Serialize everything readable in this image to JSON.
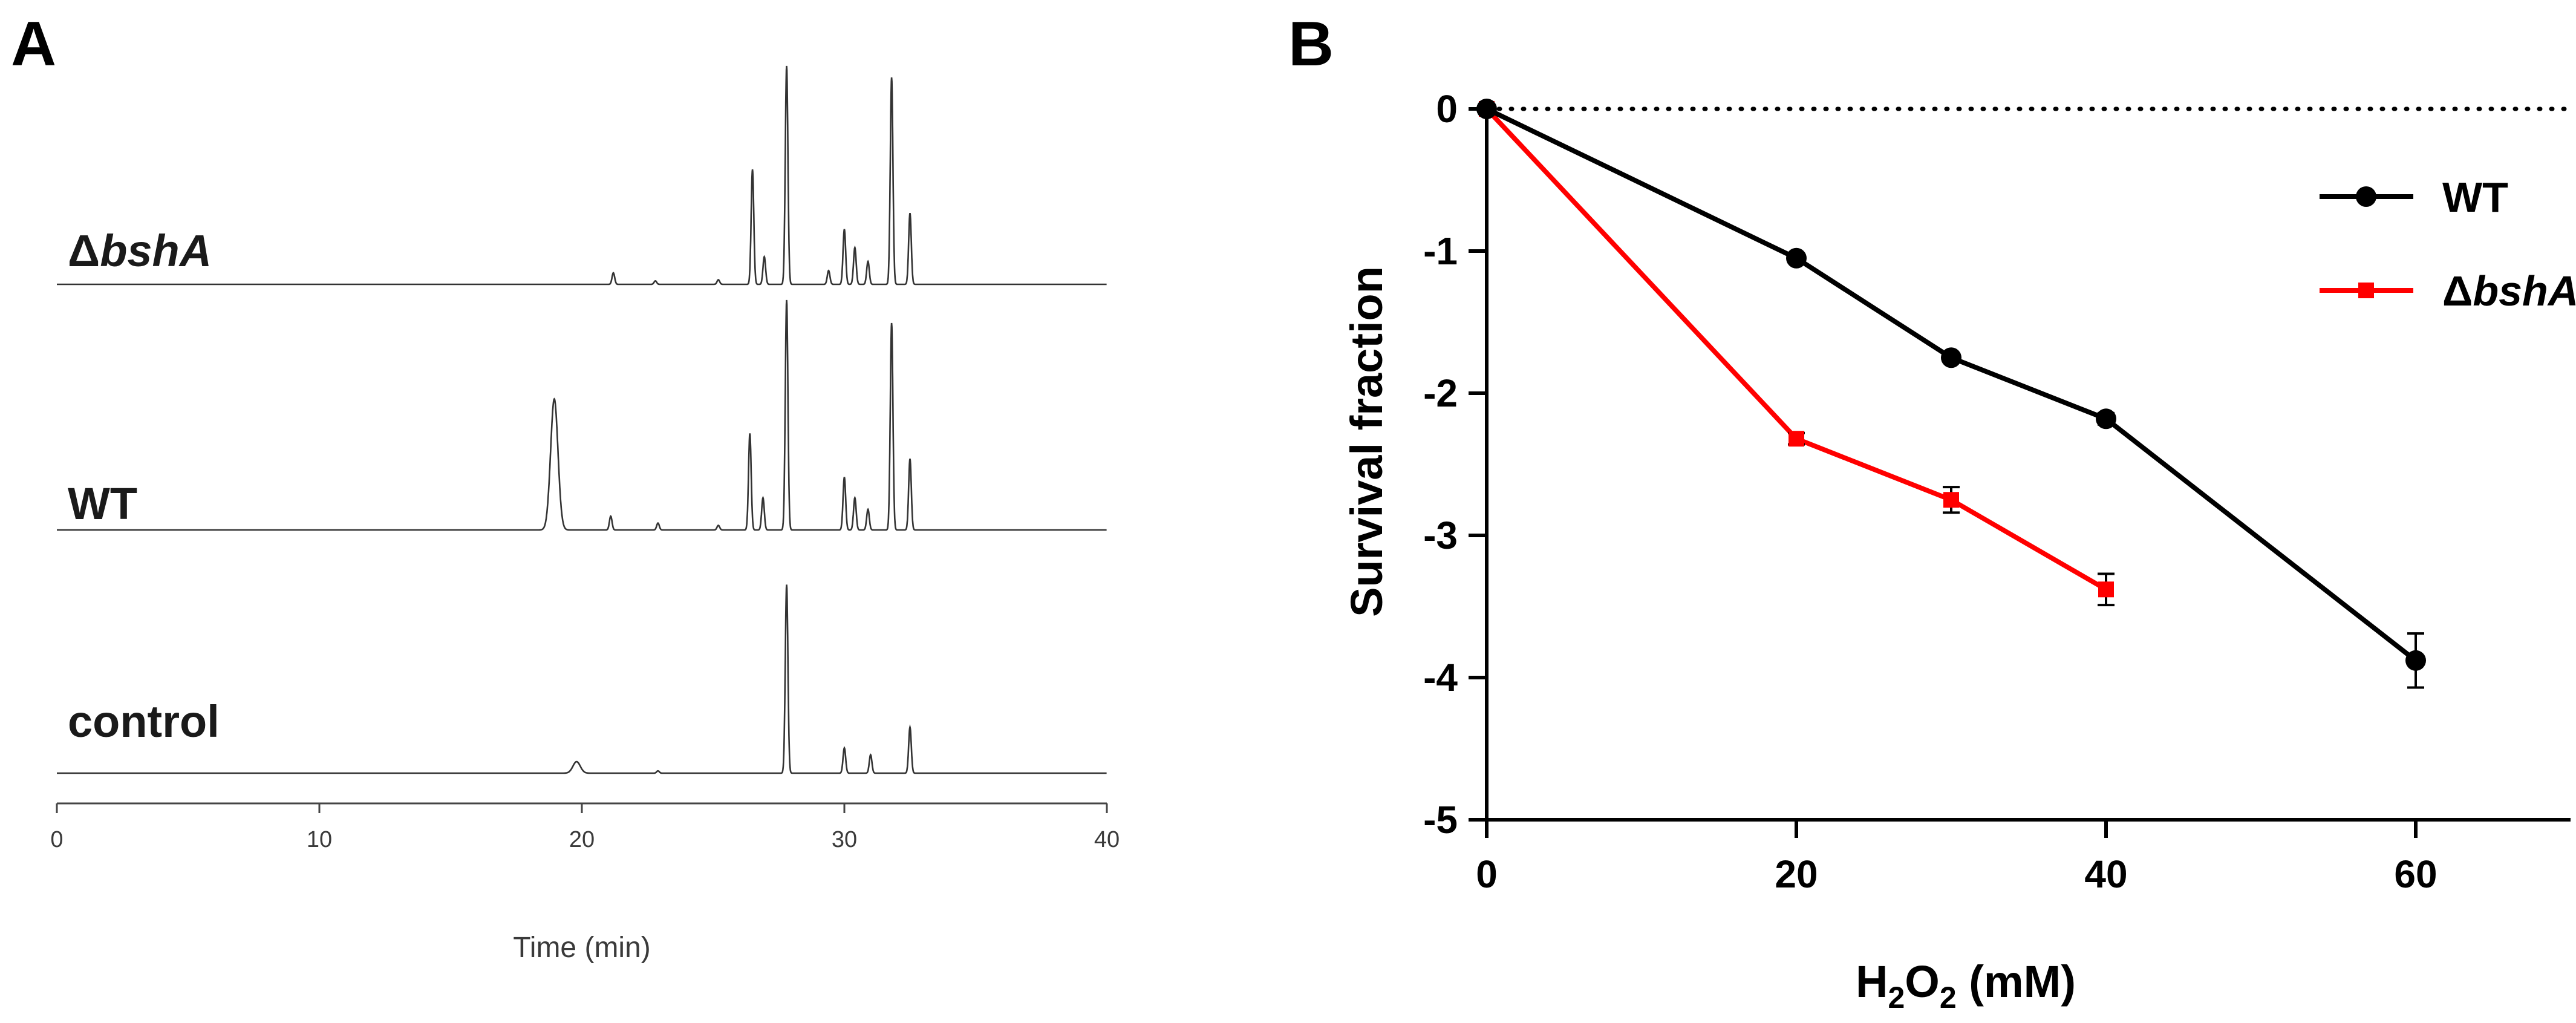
{
  "panel_a": {
    "letter": "A",
    "xlabel": "Time (min)",
    "trace_labels": [
      {
        "prefix": "Δ",
        "italic": "bshA"
      },
      {
        "prefix": "WT",
        "italic": ""
      },
      {
        "prefix": "control",
        "italic": ""
      }
    ]
  },
  "panel_b": {
    "letter": "B",
    "ylabel": "Survival fraction",
    "xlabel": {
      "pre": "H",
      "sub1": "2",
      "mid": "O",
      "sub2": "2",
      "post": " (mM)"
    },
    "legend": [
      {
        "prefix": "WT",
        "italic": ""
      },
      {
        "prefix": "Δ",
        "italic": "bshA"
      }
    ]
  },
  "chart_data": [
    {
      "type": "line",
      "title": "",
      "xlabel": "Time (min)",
      "ylabel": "",
      "xlim": [
        0,
        40
      ],
      "xticks": [
        0,
        10,
        20,
        30,
        40
      ],
      "note": "HPLC chromatograms, stacked traces; peak intensities in arbitrary units (0-1 relative)",
      "series": [
        {
          "name": "ΔbshA",
          "color": "#333333",
          "peaks": [
            [
              21.2,
              0.05
            ],
            [
              22.8,
              0.015
            ],
            [
              25.2,
              0.02
            ],
            [
              26.5,
              0.5
            ],
            [
              26.95,
              0.12
            ],
            [
              27.8,
              0.95
            ],
            [
              29.4,
              0.06
            ],
            [
              30.0,
              0.24
            ],
            [
              30.4,
              0.16
            ],
            [
              30.9,
              0.1
            ],
            [
              31.8,
              0.9
            ],
            [
              32.5,
              0.31
            ]
          ]
        },
        {
          "name": "WT",
          "color": "#333333",
          "peaks": [
            [
              18.95,
              0.57
            ],
            [
              21.1,
              0.06
            ],
            [
              22.9,
              0.03
            ],
            [
              25.2,
              0.02
            ],
            [
              26.4,
              0.42
            ],
            [
              26.9,
              0.14
            ],
            [
              27.8,
              1.0
            ],
            [
              30.0,
              0.23
            ],
            [
              30.4,
              0.14
            ],
            [
              30.9,
              0.09
            ],
            [
              31.8,
              0.9
            ],
            [
              32.5,
              0.31
            ]
          ]
        },
        {
          "name": "control",
          "color": "#333333",
          "peaks": [
            [
              19.8,
              0.05
            ],
            [
              22.9,
              0.01
            ],
            [
              27.8,
              0.82
            ],
            [
              30.0,
              0.11
            ],
            [
              31.0,
              0.08
            ],
            [
              32.5,
              0.2
            ]
          ]
        }
      ]
    },
    {
      "type": "line",
      "title": "",
      "xlabel": "H2O2 (mM)",
      "ylabel": "Survival fraction",
      "xlim": [
        0,
        70
      ],
      "ylim": [
        -5,
        0
      ],
      "xticks": [
        0,
        20,
        40,
        60
      ],
      "yticks": [
        0,
        -1,
        -2,
        -3,
        -4,
        -5
      ],
      "reference_line": {
        "y": 0,
        "style": "dotted"
      },
      "series": [
        {
          "name": "WT",
          "color": "#000000",
          "marker": "circle",
          "x": [
            0,
            20,
            30,
            40,
            60
          ],
          "y": [
            0,
            -1.05,
            -1.75,
            -2.18,
            -3.88
          ],
          "err": [
            0,
            0.03,
            0.03,
            0.04,
            0.19
          ]
        },
        {
          "name": "ΔbshA",
          "color": "#ff0000",
          "marker": "square",
          "x": [
            0,
            20,
            30,
            40
          ],
          "y": [
            0,
            -2.32,
            -2.75,
            -3.38
          ],
          "err": [
            0,
            0.04,
            0.09,
            0.11
          ]
        }
      ]
    }
  ]
}
